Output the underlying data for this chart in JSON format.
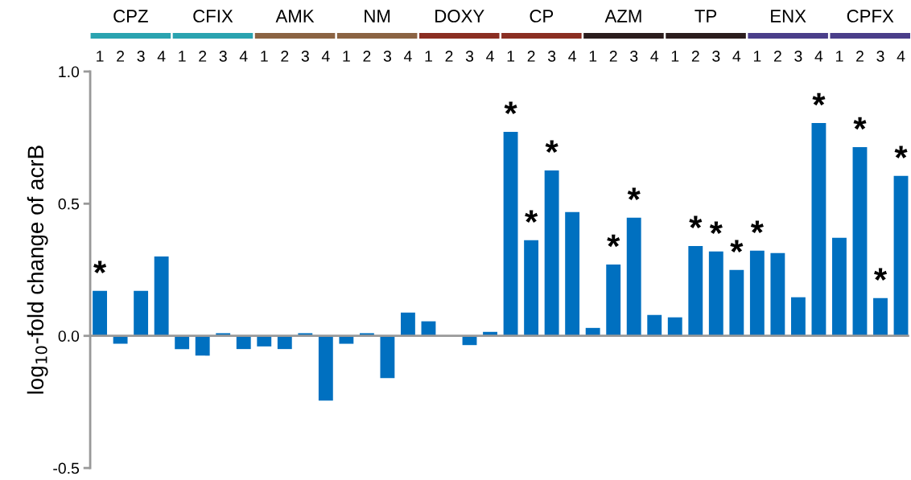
{
  "chart_data": {
    "type": "bar",
    "ylabel": "log$_{10}$-fold change of acrB",
    "categories": [
      "1",
      "2",
      "3",
      "4",
      "1",
      "2",
      "3",
      "4",
      "1",
      "2",
      "3",
      "4",
      "1",
      "2",
      "3",
      "4",
      "1",
      "2",
      "3",
      "4",
      "1",
      "2",
      "3",
      "4",
      "1",
      "2",
      "3",
      "4",
      "1",
      "2",
      "3",
      "4",
      "1",
      "2",
      "3",
      "4",
      "1",
      "2",
      "3",
      "4"
    ],
    "values": [
      0.17,
      -0.03,
      0.17,
      0.3,
      -0.05,
      -0.075,
      0.01,
      -0.05,
      -0.04,
      -0.05,
      0.01,
      -0.245,
      -0.03,
      0.01,
      -0.16,
      0.088,
      0.055,
      0,
      -0.035,
      0.015,
      0.772,
      0.362,
      0.626,
      0.468,
      0.03,
      0.27,
      0.447,
      0.079,
      0.07,
      0.34,
      0.319,
      0.249,
      0.322,
      0.313,
      0.146,
      0.805,
      0.371,
      0.714,
      0.143,
      0.605
    ],
    "value_labels": [
      "*",
      null,
      null,
      null,
      null,
      null,
      null,
      null,
      null,
      null,
      null,
      null,
      null,
      null,
      null,
      null,
      null,
      null,
      null,
      null,
      "*",
      "*",
      "*",
      null,
      null,
      "*",
      "*",
      null,
      null,
      "*",
      "*",
      "*",
      "*",
      null,
      null,
      "*",
      null,
      "*",
      "*",
      "*"
    ],
    "color": "#0070c0",
    "annotations": [
      "CPZ",
      "CFIX",
      "AMK",
      "NM",
      "DOXY",
      "CP",
      "AZM",
      "TP",
      "ENX",
      "CPFX"
    ],
    "ylim": [
      -0.5,
      1.0
    ],
    "yticks": [
      {
        "value": -0.5,
        "label": "-0.5"
      },
      {
        "value": 0.0,
        "label": "0.0"
      },
      {
        "value": 0.5,
        "label": "0.5"
      },
      {
        "value": 1.0,
        "label": "1.0"
      }
    ],
    "ref_lines": [
      {
        "axis": "y",
        "value": 0,
        "color": "#999999"
      }
    ],
    "grid": false,
    "legend": false
  }
}
